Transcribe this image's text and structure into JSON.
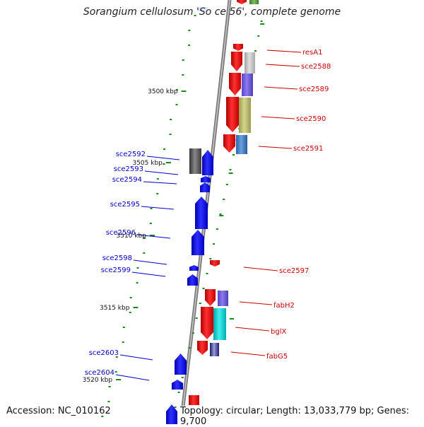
{
  "title": "Sorangium cellulosum 'So ce 56', complete genome",
  "footer": {
    "accession": "Accession: NC_010162",
    "topology": "Topology: circular; Length: 13,033,779 bp; Genes: 9,700"
  },
  "colors": {
    "forward_gene": "#ee0000",
    "reverse_gene": "#0000ee",
    "forward_label": "#cc0000",
    "reverse_label": "#0000cc",
    "backbone": "#888888",
    "tick": "#1a8a1a"
  },
  "scale_labels": [
    "3500 kbp",
    "3505 kbp",
    "3510 kbp",
    "3515 kbp",
    "3520 kbp"
  ],
  "forward_genes": [
    "resA1",
    "sce2588",
    "sce2589",
    "sce2590",
    "sce2591",
    "sce2597",
    "fabH2",
    "bglX",
    "fabG5"
  ],
  "reverse_genes": [
    "sce2592",
    "sce2593",
    "sce2594",
    "sce2595",
    "sce2596",
    "sce2598",
    "sce2599",
    "sce2603",
    "sce2604"
  ]
}
